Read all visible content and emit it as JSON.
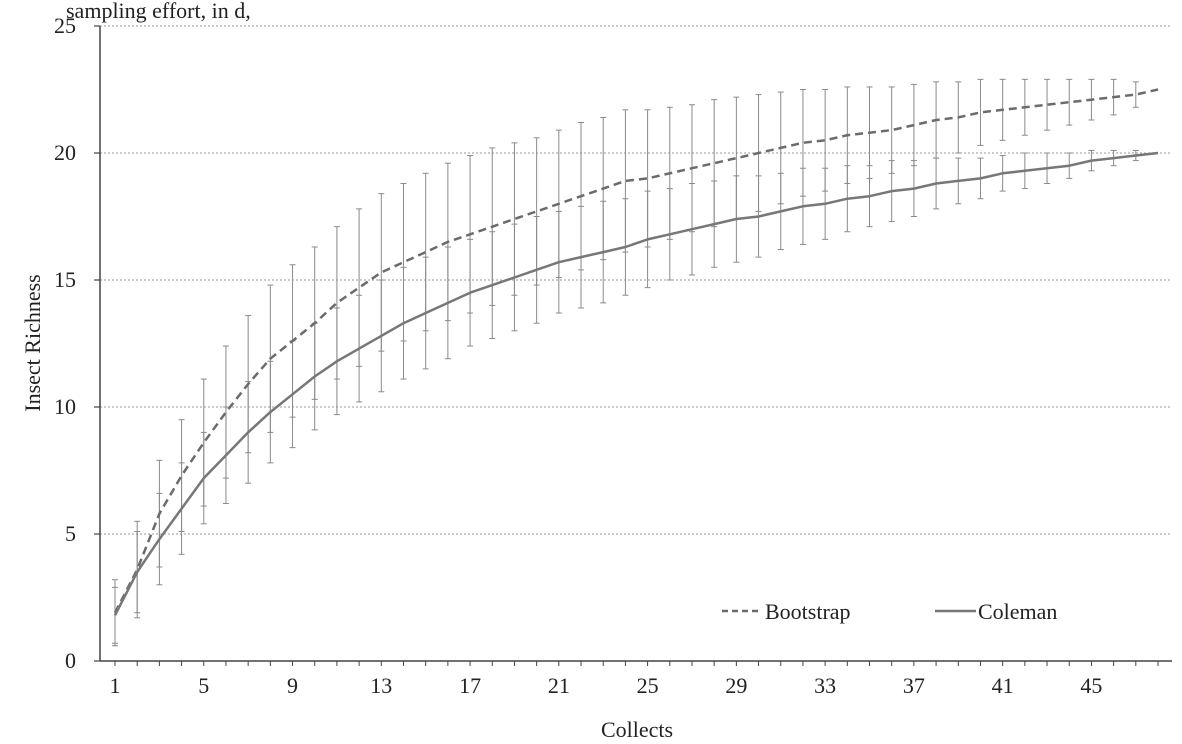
{
  "header_fragment": "sampling effort, in d,",
  "chart_data": {
    "type": "line",
    "title": "",
    "xlabel": "Collects",
    "ylabel": "Insect Richness",
    "xlim": [
      1,
      48
    ],
    "ylim": [
      0,
      25
    ],
    "x_tick_values": [
      1,
      5,
      9,
      13,
      17,
      21,
      25,
      29,
      33,
      37,
      41,
      45
    ],
    "y_tick_values": [
      0,
      5,
      10,
      15,
      20,
      25
    ],
    "grid": "horizontal dotted",
    "legend_position": "bottom-right",
    "x": [
      1,
      2,
      3,
      4,
      5,
      6,
      7,
      8,
      9,
      10,
      11,
      12,
      13,
      14,
      15,
      16,
      17,
      18,
      19,
      20,
      21,
      22,
      23,
      24,
      25,
      26,
      27,
      28,
      29,
      30,
      31,
      32,
      33,
      34,
      35,
      36,
      37,
      38,
      39,
      40,
      41,
      42,
      43,
      44,
      45,
      46,
      47,
      48
    ],
    "series": [
      {
        "name": "Bootstrap",
        "style": "dashed",
        "color": "#6b6b6b",
        "values": [
          1.9,
          3.6,
          5.8,
          7.3,
          8.6,
          9.8,
          10.9,
          11.9,
          12.6,
          13.3,
          14.1,
          14.7,
          15.3,
          15.7,
          16.1,
          16.5,
          16.8,
          17.1,
          17.4,
          17.7,
          18.0,
          18.3,
          18.6,
          18.9,
          19.0,
          19.2,
          19.4,
          19.6,
          19.8,
          20.0,
          20.2,
          20.4,
          20.5,
          20.7,
          20.8,
          20.9,
          21.1,
          21.3,
          21.4,
          21.6,
          21.7,
          21.8,
          21.9,
          22.0,
          22.1,
          22.2,
          22.3,
          22.5
        ],
        "error": [
          1.3,
          1.9,
          2.1,
          2.2,
          2.5,
          2.6,
          2.7,
          2.9,
          3.0,
          3.0,
          3.0,
          3.1,
          3.1,
          3.1,
          3.1,
          3.1,
          3.1,
          3.1,
          3.0,
          2.9,
          2.9,
          2.9,
          2.8,
          2.8,
          2.7,
          2.6,
          2.5,
          2.5,
          2.4,
          2.3,
          2.2,
          2.1,
          2.0,
          1.9,
          1.8,
          1.7,
          1.6,
          1.5,
          1.4,
          1.3,
          1.2,
          1.1,
          1.0,
          0.9,
          0.8,
          0.7,
          0.5,
          0.0
        ]
      },
      {
        "name": "Coleman",
        "style": "solid",
        "color": "#777777",
        "values": [
          1.8,
          3.5,
          4.8,
          6.0,
          7.2,
          8.1,
          9.0,
          9.8,
          10.5,
          11.2,
          11.8,
          12.3,
          12.8,
          13.3,
          13.7,
          14.1,
          14.5,
          14.8,
          15.1,
          15.4,
          15.7,
          15.9,
          16.1,
          16.3,
          16.6,
          16.8,
          17.0,
          17.2,
          17.4,
          17.5,
          17.7,
          17.9,
          18.0,
          18.2,
          18.3,
          18.5,
          18.6,
          18.8,
          18.9,
          19.0,
          19.2,
          19.3,
          19.4,
          19.5,
          19.7,
          19.8,
          19.9,
          20.0
        ],
        "error": [
          1.1,
          1.6,
          1.8,
          1.8,
          1.8,
          1.9,
          2.0,
          2.0,
          2.1,
          2.1,
          2.1,
          2.1,
          2.2,
          2.2,
          2.2,
          2.2,
          2.1,
          2.1,
          2.1,
          2.1,
          2.0,
          2.0,
          2.0,
          1.9,
          1.9,
          1.8,
          1.8,
          1.7,
          1.7,
          1.6,
          1.5,
          1.5,
          1.4,
          1.3,
          1.2,
          1.2,
          1.1,
          1.0,
          0.9,
          0.8,
          0.7,
          0.7,
          0.6,
          0.5,
          0.4,
          0.3,
          0.2,
          0.0
        ]
      }
    ]
  }
}
